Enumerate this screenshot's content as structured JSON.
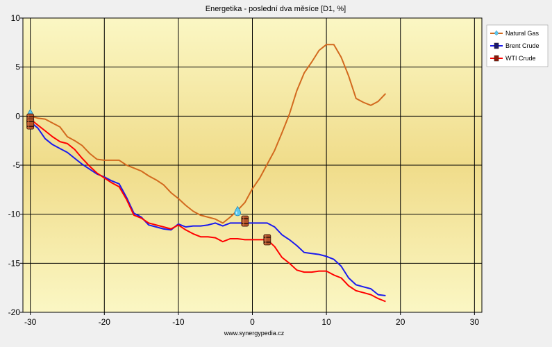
{
  "chart_data": {
    "type": "line",
    "title": "Energetika - poslední dva měsíce [D1, %]",
    "source": "www.synergypedia.cz",
    "xlim": [
      -31,
      31
    ],
    "ylim": [
      -20,
      10
    ],
    "x_ticks": [
      -30,
      -20,
      -10,
      0,
      10,
      20,
      30
    ],
    "y_ticks": [
      10,
      5,
      0,
      -5,
      -10,
      -15,
      -20
    ],
    "grid": true,
    "legend_position": "right",
    "series": [
      {
        "name": "Natural Gas",
        "color": "#d2691e",
        "marker": "droplet-icon",
        "marker_points": [
          [
            -30,
            0.2
          ],
          [
            -2,
            -9.7
          ]
        ],
        "x": [
          -30,
          -29,
          -28,
          -27,
          -26,
          -25,
          -24,
          -23,
          -22,
          -21,
          -20,
          -19,
          -18,
          -17,
          -16,
          -15,
          -14,
          -13,
          -12,
          -11,
          -10,
          -9,
          -8,
          -7,
          -6,
          -5,
          -4,
          -3,
          -2,
          -1,
          0,
          1,
          2,
          3,
          4,
          5,
          6,
          7,
          8,
          9,
          10,
          11,
          12,
          13,
          14,
          15,
          16,
          17,
          18
        ],
        "y": [
          0,
          -0.2,
          -0.3,
          -0.7,
          -1.1,
          -2.1,
          -2.5,
          -3,
          -3.8,
          -4.4,
          -4.5,
          -4.5,
          -4.5,
          -5,
          -5.3,
          -5.6,
          -6.1,
          -6.5,
          -7,
          -7.8,
          -8.4,
          -9.1,
          -9.7,
          -10.1,
          -10.3,
          -10.5,
          -10.9,
          -10.3,
          -9.6,
          -8.8,
          -7.4,
          -6.3,
          -4.9,
          -3.5,
          -1.7,
          0.2,
          2.6,
          4.4,
          5.5,
          6.7,
          7.3,
          7.3,
          6.0,
          4.1,
          1.8,
          1.4,
          1.1,
          1.5,
          2.3
        ]
      },
      {
        "name": "Brent Crude",
        "color": "#1a1aee",
        "marker": "barrel-icon",
        "x": [
          -30,
          -29,
          -28,
          -27,
          -26,
          -25,
          -24,
          -23,
          -22,
          -21,
          -20,
          -19,
          -18,
          -17,
          -16,
          -15,
          -14,
          -13,
          -12,
          -11,
          -10,
          -9,
          -8,
          -7,
          -6,
          -5,
          -4,
          -3,
          -2,
          -1,
          0,
          1,
          2,
          3,
          4,
          5,
          6,
          7,
          8,
          9,
          10,
          11,
          12,
          13,
          14,
          15,
          16,
          17,
          18
        ],
        "y": [
          -0.6,
          -1.2,
          -2.3,
          -2.9,
          -3.3,
          -3.7,
          -4.3,
          -4.9,
          -5.4,
          -5.9,
          -6.2,
          -6.6,
          -6.9,
          -8.3,
          -9.9,
          -10.3,
          -11.1,
          -11.3,
          -11.5,
          -11.6,
          -11,
          -11.3,
          -11.2,
          -11.2,
          -11.1,
          -10.9,
          -11.2,
          -10.9,
          -10.9,
          -10.9,
          -10.9,
          -10.9,
          -10.9,
          -11.3,
          -12.1,
          -12.6,
          -13.2,
          -13.9,
          -14,
          -14.1,
          -14.3,
          -14.6,
          -15.3,
          -16.5,
          -17.2,
          -17.4,
          -17.6,
          -18.2,
          -18.3
        ]
      },
      {
        "name": "WTI Crude",
        "color": "#ff0000",
        "marker": "barrel-icon",
        "marker_points": [
          [
            -30,
            -0.3
          ],
          [
            -30,
            -0.8
          ],
          [
            -1,
            -10.7
          ],
          [
            2,
            -12.6
          ]
        ],
        "x": [
          -30,
          -29,
          -28,
          -27,
          -26,
          -25,
          -24,
          -23,
          -22,
          -21,
          -20,
          -19,
          -18,
          -17,
          -16,
          -15,
          -14,
          -13,
          -12,
          -11,
          -10,
          -9,
          -8,
          -7,
          -6,
          -5,
          -4,
          -3,
          -2,
          -1,
          0,
          1,
          2,
          3,
          4,
          5,
          6,
          7,
          8,
          9,
          10,
          11,
          12,
          13,
          14,
          15,
          16,
          17,
          18
        ],
        "y": [
          -0.3,
          -0.9,
          -1.5,
          -2.1,
          -2.6,
          -2.8,
          -3.4,
          -4.3,
          -5.1,
          -5.8,
          -6.3,
          -6.8,
          -7.2,
          -8.5,
          -10.1,
          -10.4,
          -10.9,
          -11.1,
          -11.3,
          -11.5,
          -11.1,
          -11.6,
          -12.0,
          -12.3,
          -12.3,
          -12.4,
          -12.8,
          -12.5,
          -12.5,
          -12.6,
          -12.6,
          -12.6,
          -12.6,
          -13.3,
          -14.4,
          -15.0,
          -15.7,
          -15.9,
          -15.9,
          -15.8,
          -15.8,
          -16.2,
          -16.5,
          -17.3,
          -17.8,
          -18.0,
          -18.2,
          -18.6,
          -18.9
        ]
      }
    ]
  }
}
